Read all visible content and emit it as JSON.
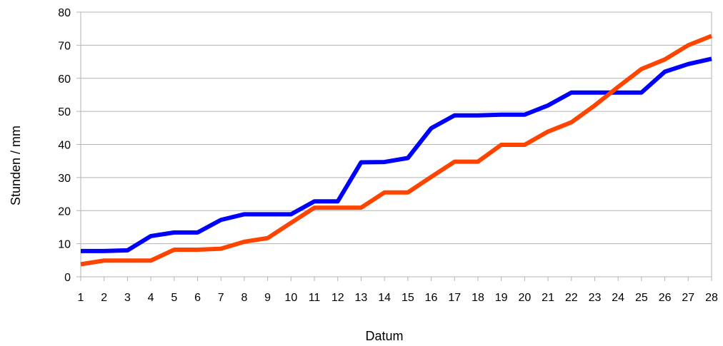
{
  "chart_data": {
    "type": "line",
    "title": "",
    "xlabel": "Datum",
    "ylabel": "Stunden / mm",
    "x": [
      1,
      2,
      3,
      4,
      5,
      6,
      7,
      8,
      9,
      10,
      11,
      12,
      13,
      14,
      15,
      16,
      17,
      18,
      19,
      20,
      21,
      22,
      23,
      24,
      25,
      26,
      27,
      28
    ],
    "ylim": [
      0,
      80
    ],
    "yticks": [
      0,
      10,
      20,
      30,
      40,
      50,
      60,
      70,
      80
    ],
    "grid": true,
    "legend": "none",
    "series": [
      {
        "color": "#0000ff",
        "values": [
          7.8,
          7.8,
          8.0,
          12.3,
          13.4,
          13.4,
          17.2,
          18.9,
          18.9,
          18.9,
          22.8,
          22.8,
          34.6,
          34.7,
          35.9,
          44.9,
          48.8,
          48.8,
          49.0,
          49.0,
          51.8,
          55.7,
          55.7,
          55.7,
          55.7,
          62.0,
          64.3,
          65.9
        ]
      },
      {
        "color": "#ff4400",
        "values": [
          3.8,
          4.9,
          4.9,
          4.9,
          8.2,
          8.2,
          8.5,
          10.6,
          11.7,
          16.3,
          20.9,
          20.9,
          20.9,
          25.5,
          25.5,
          30.2,
          34.8,
          34.8,
          39.9,
          39.9,
          43.9,
          46.7,
          51.8,
          57.4,
          62.8,
          65.7,
          70.0,
          72.8
        ]
      }
    ]
  }
}
